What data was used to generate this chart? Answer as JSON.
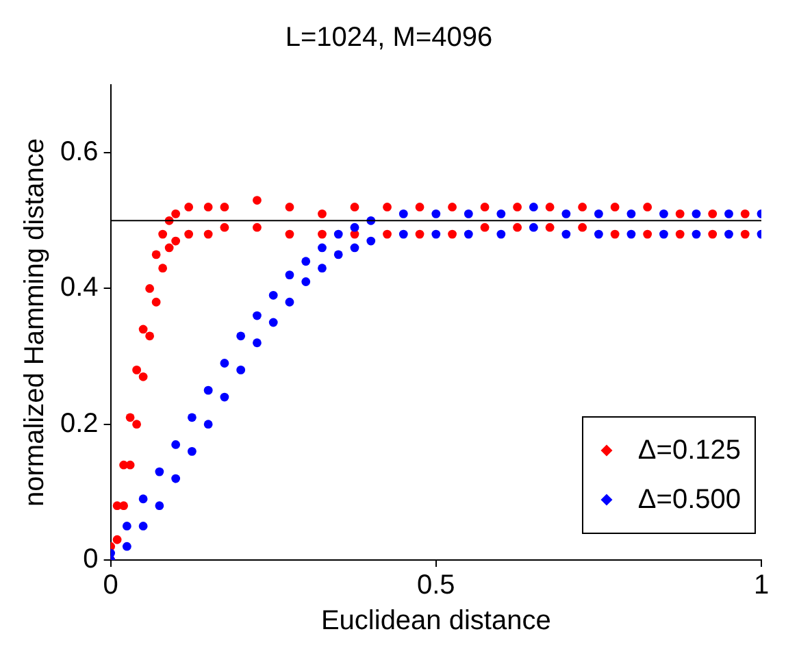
{
  "chart_data": {
    "type": "scatter",
    "title": "L=1024, M=4096",
    "xlabel": "Euclidean distance",
    "ylabel": "normalized Hamming distance",
    "xlim": [
      0,
      1
    ],
    "ylim": [
      0,
      0.7
    ],
    "xticks": [
      0,
      0.5,
      1
    ],
    "yticks": [
      0,
      0.2,
      0.4,
      0.6
    ],
    "grid": false,
    "legend": "bottom right",
    "marker": "circle",
    "ref_lines": [
      {
        "axis": "y",
        "value": 0.5,
        "color": "#000000"
      }
    ],
    "series": [
      {
        "name": "Δ=0.125",
        "color": "#ff0000",
        "x": [
          0,
          0,
          0.01,
          0.01,
          0.02,
          0.02,
          0.03,
          0.03,
          0.04,
          0.04,
          0.05,
          0.05,
          0.06,
          0.06,
          0.07,
          0.07,
          0.08,
          0.08,
          0.09,
          0.09,
          0.1,
          0.1,
          0.12,
          0.12,
          0.15,
          0.15,
          0.175,
          0.175,
          0.225,
          0.225,
          0.275,
          0.275,
          0.325,
          0.325,
          0.375,
          0.375,
          0.425,
          0.425,
          0.475,
          0.475,
          0.525,
          0.525,
          0.575,
          0.575,
          0.625,
          0.625,
          0.675,
          0.675,
          0.725,
          0.725,
          0.775,
          0.775,
          0.825,
          0.825,
          0.875,
          0.875,
          0.925,
          0.925,
          0.975,
          0.975
        ],
        "values": [
          0,
          0.02,
          0.03,
          0.08,
          0.08,
          0.14,
          0.14,
          0.21,
          0.2,
          0.28,
          0.27,
          0.34,
          0.33,
          0.4,
          0.38,
          0.45,
          0.43,
          0.48,
          0.46,
          0.5,
          0.47,
          0.51,
          0.48,
          0.52,
          0.48,
          0.52,
          0.49,
          0.52,
          0.49,
          0.53,
          0.48,
          0.52,
          0.48,
          0.51,
          0.48,
          0.52,
          0.48,
          0.52,
          0.48,
          0.52,
          0.48,
          0.52,
          0.49,
          0.52,
          0.49,
          0.52,
          0.49,
          0.52,
          0.49,
          0.52,
          0.48,
          0.52,
          0.48,
          0.52,
          0.48,
          0.51,
          0.48,
          0.51,
          0.48,
          0.51
        ]
      },
      {
        "name": "Δ=0.500",
        "color": "#0000ff",
        "x": [
          0,
          0,
          0.025,
          0.025,
          0.05,
          0.05,
          0.075,
          0.075,
          0.1,
          0.1,
          0.125,
          0.125,
          0.15,
          0.15,
          0.175,
          0.175,
          0.2,
          0.2,
          0.225,
          0.225,
          0.25,
          0.25,
          0.275,
          0.275,
          0.3,
          0.3,
          0.325,
          0.325,
          0.35,
          0.35,
          0.375,
          0.375,
          0.4,
          0.4,
          0.45,
          0.45,
          0.5,
          0.5,
          0.55,
          0.55,
          0.6,
          0.6,
          0.65,
          0.65,
          0.7,
          0.7,
          0.75,
          0.75,
          0.8,
          0.8,
          0.85,
          0.85,
          0.9,
          0.9,
          0.95,
          0.95,
          1,
          1
        ],
        "values": [
          0,
          0.01,
          0.02,
          0.05,
          0.05,
          0.09,
          0.08,
          0.13,
          0.12,
          0.17,
          0.16,
          0.21,
          0.2,
          0.25,
          0.24,
          0.29,
          0.28,
          0.33,
          0.32,
          0.36,
          0.35,
          0.39,
          0.38,
          0.42,
          0.41,
          0.44,
          0.43,
          0.46,
          0.45,
          0.48,
          0.46,
          0.49,
          0.47,
          0.5,
          0.48,
          0.51,
          0.48,
          0.51,
          0.48,
          0.51,
          0.48,
          0.51,
          0.49,
          0.52,
          0.48,
          0.51,
          0.48,
          0.51,
          0.48,
          0.51,
          0.48,
          0.51,
          0.48,
          0.51,
          0.48,
          0.51,
          0.48,
          0.51
        ]
      }
    ]
  }
}
